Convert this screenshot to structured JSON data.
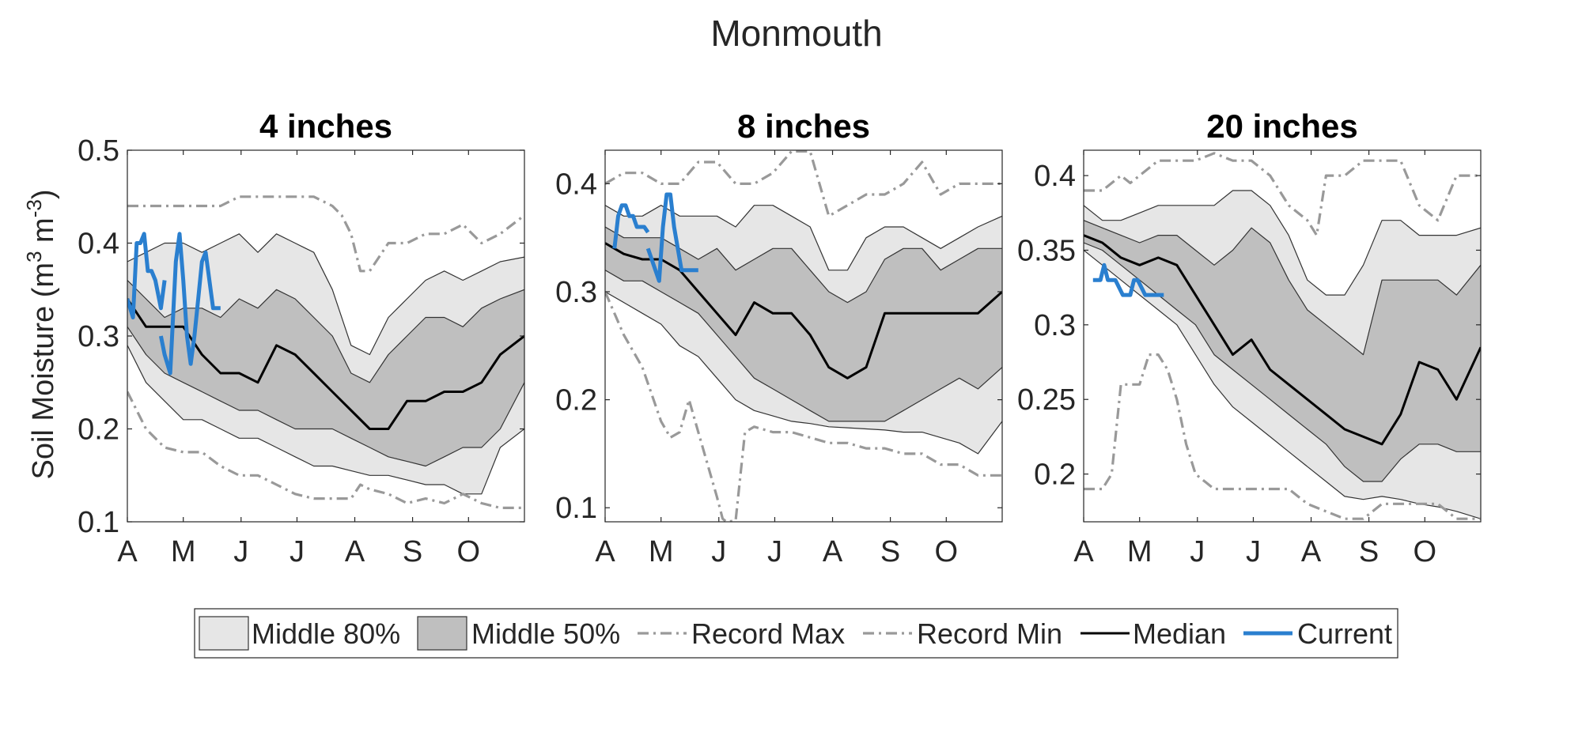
{
  "figure": {
    "title": "Monmouth",
    "ylabel_main": "Soil Moisture (m",
    "ylabel_sup1": "3",
    "ylabel_mid": " m",
    "ylabel_sup2": "-3",
    "ylabel_end": ")"
  },
  "colors": {
    "band80": "#e6e6e6",
    "band50": "#bfbfbf",
    "band_edge": "#333333",
    "record": "#999999",
    "median": "#000000",
    "current": "#2a7fcf"
  },
  "legend": {
    "items": [
      {
        "label": "Middle 80%",
        "kind": "patch80"
      },
      {
        "label": "Middle 50%",
        "kind": "patch50"
      },
      {
        "label": "Record Max",
        "kind": "record"
      },
      {
        "label": "Record Min",
        "kind": "record"
      },
      {
        "label": "Median",
        "kind": "median"
      },
      {
        "label": "Current",
        "kind": "current"
      }
    ]
  },
  "chart_data": [
    {
      "type": "area",
      "title": "4 inches",
      "xlabel": "",
      "ylabel": "Soil Moisture (m3 m-3)",
      "x_tick_labels": [
        "A",
        "M",
        "J",
        "J",
        "A",
        "S",
        "O"
      ],
      "x_tick_days": [
        0,
        30,
        61,
        91,
        122,
        153,
        183
      ],
      "xlim": [
        0,
        213
      ],
      "ylim": [
        0.1,
        0.5
      ],
      "y_ticks": [
        0.1,
        0.2,
        0.3,
        0.4,
        0.5
      ],
      "y_tick_labels": [
        "0.1",
        "0.2",
        "0.3",
        "0.4",
        "0.5"
      ],
      "x_days": [
        0,
        10,
        20,
        30,
        40,
        50,
        60,
        70,
        80,
        90,
        100,
        110,
        120,
        130,
        140,
        150,
        160,
        170,
        180,
        190,
        200,
        213
      ],
      "p10": [
        0.29,
        0.25,
        0.23,
        0.21,
        0.21,
        0.2,
        0.19,
        0.19,
        0.18,
        0.17,
        0.16,
        0.16,
        0.155,
        0.15,
        0.15,
        0.145,
        0.14,
        0.14,
        0.13,
        0.13,
        0.18,
        0.2
      ],
      "p25": [
        0.31,
        0.28,
        0.26,
        0.25,
        0.24,
        0.23,
        0.22,
        0.22,
        0.21,
        0.2,
        0.2,
        0.2,
        0.19,
        0.18,
        0.17,
        0.165,
        0.16,
        0.17,
        0.18,
        0.18,
        0.2,
        0.25
      ],
      "p50": [
        0.34,
        0.31,
        0.31,
        0.31,
        0.28,
        0.26,
        0.26,
        0.25,
        0.29,
        0.28,
        0.26,
        0.24,
        0.22,
        0.2,
        0.2,
        0.23,
        0.23,
        0.24,
        0.24,
        0.25,
        0.28,
        0.3
      ],
      "p75": [
        0.36,
        0.34,
        0.32,
        0.33,
        0.33,
        0.32,
        0.34,
        0.33,
        0.35,
        0.34,
        0.32,
        0.3,
        0.26,
        0.25,
        0.28,
        0.3,
        0.32,
        0.32,
        0.31,
        0.33,
        0.34,
        0.35
      ],
      "p90": [
        0.38,
        0.39,
        0.4,
        0.4,
        0.39,
        0.4,
        0.41,
        0.39,
        0.41,
        0.4,
        0.39,
        0.35,
        0.29,
        0.28,
        0.32,
        0.34,
        0.36,
        0.37,
        0.36,
        0.37,
        0.38,
        0.385
      ],
      "record_max": {
        "x": [
          0,
          10,
          20,
          30,
          35,
          40,
          50,
          60,
          70,
          80,
          90,
          100,
          110,
          115,
          120,
          125,
          130,
          140,
          150,
          160,
          170,
          180,
          190,
          200,
          213
        ],
        "y": [
          0.44,
          0.44,
          0.44,
          0.44,
          0.44,
          0.44,
          0.44,
          0.45,
          0.45,
          0.45,
          0.45,
          0.45,
          0.44,
          0.43,
          0.41,
          0.37,
          0.37,
          0.4,
          0.4,
          0.41,
          0.41,
          0.42,
          0.4,
          0.41,
          0.43
        ]
      },
      "record_min": {
        "x": [
          0,
          10,
          20,
          30,
          40,
          50,
          60,
          70,
          80,
          90,
          100,
          110,
          120,
          125,
          130,
          140,
          150,
          160,
          170,
          180,
          190,
          200,
          213
        ],
        "y": [
          0.24,
          0.2,
          0.18,
          0.175,
          0.175,
          0.16,
          0.15,
          0.15,
          0.14,
          0.13,
          0.125,
          0.125,
          0.125,
          0.14,
          0.135,
          0.13,
          0.12,
          0.125,
          0.12,
          0.13,
          0.12,
          0.115,
          0.115
        ]
      },
      "current": {
        "x": [
          0,
          3,
          5,
          7,
          9,
          11,
          13,
          15,
          18,
          20,
          null,
          18,
          20,
          23,
          26,
          28,
          30,
          32,
          34,
          36,
          38,
          40,
          42,
          44,
          46,
          48,
          50
        ],
        "y": [
          0.34,
          0.32,
          0.4,
          0.4,
          0.41,
          0.37,
          0.37,
          0.36,
          0.33,
          0.36,
          null,
          0.3,
          0.28,
          0.26,
          0.38,
          0.41,
          0.36,
          0.3,
          0.27,
          0.3,
          0.34,
          0.38,
          0.39,
          0.36,
          0.33,
          0.33,
          0.33
        ]
      }
    },
    {
      "type": "area",
      "title": "8 inches",
      "xlabel": "",
      "ylabel": "",
      "x_tick_labels": [
        "A",
        "M",
        "J",
        "J",
        "A",
        "S",
        "O"
      ],
      "x_tick_days": [
        0,
        30,
        61,
        91,
        122,
        153,
        183
      ],
      "xlim": [
        0,
        213
      ],
      "ylim": [
        0.087,
        0.431
      ],
      "y_ticks": [
        0.1,
        0.2,
        0.3,
        0.4
      ],
      "y_tick_labels": [
        "0.1",
        "0.2",
        "0.3",
        "0.4"
      ],
      "x_days": [
        0,
        10,
        20,
        30,
        40,
        50,
        60,
        70,
        80,
        90,
        100,
        110,
        120,
        130,
        140,
        150,
        160,
        170,
        180,
        190,
        200,
        213
      ],
      "p10": [
        0.3,
        0.29,
        0.28,
        0.27,
        0.25,
        0.24,
        0.22,
        0.2,
        0.19,
        0.185,
        0.18,
        0.178,
        0.175,
        0.174,
        0.173,
        0.172,
        0.17,
        0.17,
        0.165,
        0.16,
        0.15,
        0.18
      ],
      "p25": [
        0.32,
        0.31,
        0.31,
        0.3,
        0.29,
        0.28,
        0.26,
        0.24,
        0.22,
        0.21,
        0.2,
        0.19,
        0.18,
        0.18,
        0.18,
        0.18,
        0.19,
        0.2,
        0.21,
        0.22,
        0.21,
        0.23
      ],
      "p50": [
        0.345,
        0.335,
        0.33,
        0.33,
        0.32,
        0.3,
        0.28,
        0.26,
        0.29,
        0.28,
        0.28,
        0.26,
        0.23,
        0.22,
        0.23,
        0.28,
        0.28,
        0.28,
        0.28,
        0.28,
        0.28,
        0.3
      ],
      "p75": [
        0.36,
        0.35,
        0.35,
        0.35,
        0.34,
        0.33,
        0.34,
        0.32,
        0.33,
        0.34,
        0.34,
        0.32,
        0.3,
        0.29,
        0.3,
        0.33,
        0.34,
        0.34,
        0.32,
        0.33,
        0.34,
        0.34
      ],
      "p90": [
        0.38,
        0.37,
        0.37,
        0.38,
        0.37,
        0.37,
        0.37,
        0.36,
        0.38,
        0.38,
        0.37,
        0.36,
        0.32,
        0.32,
        0.35,
        0.36,
        0.36,
        0.35,
        0.34,
        0.35,
        0.36,
        0.37
      ],
      "record_max": {
        "x": [
          0,
          10,
          20,
          30,
          40,
          50,
          60,
          70,
          80,
          90,
          100,
          110,
          115,
          120,
          130,
          140,
          150,
          160,
          170,
          180,
          190,
          200,
          213
        ],
        "y": [
          0.4,
          0.41,
          0.41,
          0.4,
          0.4,
          0.42,
          0.42,
          0.4,
          0.4,
          0.41,
          0.43,
          0.43,
          0.4,
          0.37,
          0.38,
          0.39,
          0.39,
          0.4,
          0.42,
          0.39,
          0.4,
          0.4,
          0.4
        ]
      },
      "record_min": {
        "x": [
          0,
          10,
          20,
          30,
          35,
          40,
          45,
          50,
          55,
          60,
          63,
          65,
          70,
          75,
          80,
          90,
          100,
          110,
          120,
          130,
          140,
          150,
          160,
          170,
          180,
          190,
          200,
          213
        ],
        "y": [
          0.3,
          0.26,
          0.23,
          0.18,
          0.165,
          0.17,
          0.2,
          0.17,
          0.14,
          0.11,
          0.09,
          0.087,
          0.088,
          0.17,
          0.175,
          0.17,
          0.17,
          0.165,
          0.16,
          0.16,
          0.155,
          0.155,
          0.15,
          0.15,
          0.14,
          0.14,
          0.13,
          0.13
        ]
      },
      "current": {
        "x": [
          5,
          7,
          9,
          11,
          13,
          15,
          17,
          19,
          21,
          23,
          null,
          23,
          25,
          27,
          29,
          31,
          33,
          35,
          37,
          39,
          41,
          43,
          45,
          47,
          50
        ],
        "y": [
          0.34,
          0.37,
          0.38,
          0.38,
          0.37,
          0.37,
          0.36,
          0.36,
          0.36,
          0.355,
          null,
          0.34,
          0.33,
          0.32,
          0.31,
          0.36,
          0.39,
          0.39,
          0.36,
          0.34,
          0.32,
          0.32,
          0.32,
          0.32,
          0.32
        ]
      }
    },
    {
      "type": "area",
      "title": "20 inches",
      "xlabel": "",
      "ylabel": "",
      "x_tick_labels": [
        "A",
        "M",
        "J",
        "J",
        "A",
        "S",
        "O"
      ],
      "x_tick_days": [
        0,
        30,
        61,
        91,
        122,
        153,
        183
      ],
      "xlim": [
        0,
        213
      ],
      "ylim": [
        0.168,
        0.417
      ],
      "y_ticks": [
        0.2,
        0.25,
        0.3,
        0.35,
        0.4
      ],
      "y_tick_labels": [
        "0.2",
        "0.25",
        "0.3",
        "0.35",
        "0.4"
      ],
      "x_days": [
        0,
        10,
        20,
        30,
        40,
        50,
        60,
        70,
        80,
        90,
        100,
        110,
        120,
        130,
        140,
        150,
        160,
        170,
        180,
        190,
        200,
        213
      ],
      "p10": [
        0.35,
        0.34,
        0.33,
        0.32,
        0.31,
        0.3,
        0.28,
        0.26,
        0.245,
        0.235,
        0.225,
        0.215,
        0.205,
        0.195,
        0.185,
        0.183,
        0.185,
        0.183,
        0.18,
        0.178,
        0.175,
        0.17
      ],
      "p25": [
        0.355,
        0.35,
        0.34,
        0.33,
        0.32,
        0.31,
        0.3,
        0.28,
        0.27,
        0.26,
        0.25,
        0.24,
        0.23,
        0.22,
        0.205,
        0.195,
        0.195,
        0.21,
        0.22,
        0.22,
        0.215,
        0.215
      ],
      "p50": [
        0.36,
        0.355,
        0.345,
        0.34,
        0.345,
        0.34,
        0.32,
        0.3,
        0.28,
        0.29,
        0.27,
        0.26,
        0.25,
        0.24,
        0.23,
        0.225,
        0.22,
        0.24,
        0.275,
        0.27,
        0.25,
        0.285
      ],
      "p75": [
        0.37,
        0.365,
        0.36,
        0.355,
        0.36,
        0.36,
        0.35,
        0.34,
        0.35,
        0.365,
        0.355,
        0.33,
        0.31,
        0.3,
        0.29,
        0.28,
        0.33,
        0.33,
        0.33,
        0.33,
        0.32,
        0.34
      ],
      "p90": [
        0.38,
        0.37,
        0.37,
        0.375,
        0.38,
        0.38,
        0.38,
        0.38,
        0.39,
        0.39,
        0.38,
        0.36,
        0.33,
        0.32,
        0.32,
        0.34,
        0.37,
        0.37,
        0.36,
        0.36,
        0.36,
        0.365
      ],
      "record_max": {
        "x": [
          0,
          10,
          20,
          25,
          30,
          40,
          50,
          60,
          70,
          80,
          90,
          100,
          110,
          120,
          125,
          130,
          140,
          150,
          160,
          170,
          180,
          190,
          200,
          213
        ],
        "y": [
          0.39,
          0.39,
          0.4,
          0.395,
          0.4,
          0.41,
          0.41,
          0.41,
          0.415,
          0.41,
          0.41,
          0.4,
          0.38,
          0.37,
          0.36,
          0.4,
          0.4,
          0.41,
          0.41,
          0.41,
          0.38,
          0.37,
          0.4,
          0.4
        ]
      },
      "record_min": {
        "x": [
          0,
          10,
          15,
          20,
          25,
          30,
          35,
          40,
          45,
          50,
          55,
          60,
          70,
          80,
          90,
          100,
          110,
          120,
          130,
          140,
          150,
          160,
          170,
          180,
          190,
          200,
          213
        ],
        "y": [
          0.19,
          0.19,
          0.2,
          0.26,
          0.26,
          0.26,
          0.28,
          0.28,
          0.27,
          0.25,
          0.22,
          0.2,
          0.19,
          0.19,
          0.19,
          0.19,
          0.19,
          0.18,
          0.175,
          0.17,
          0.17,
          0.18,
          0.18,
          0.18,
          0.18,
          0.17,
          0.17
        ]
      },
      "current": {
        "x": [
          5,
          7,
          9,
          11,
          13,
          15,
          17,
          19,
          21,
          23,
          25,
          27,
          29,
          31,
          33,
          35,
          37,
          39,
          41,
          43
        ],
        "y": [
          0.33,
          0.33,
          0.33,
          0.34,
          0.33,
          0.33,
          0.33,
          0.325,
          0.32,
          0.32,
          0.32,
          0.33,
          0.33,
          0.325,
          0.32,
          0.32,
          0.32,
          0.32,
          0.32,
          0.32
        ]
      }
    }
  ]
}
